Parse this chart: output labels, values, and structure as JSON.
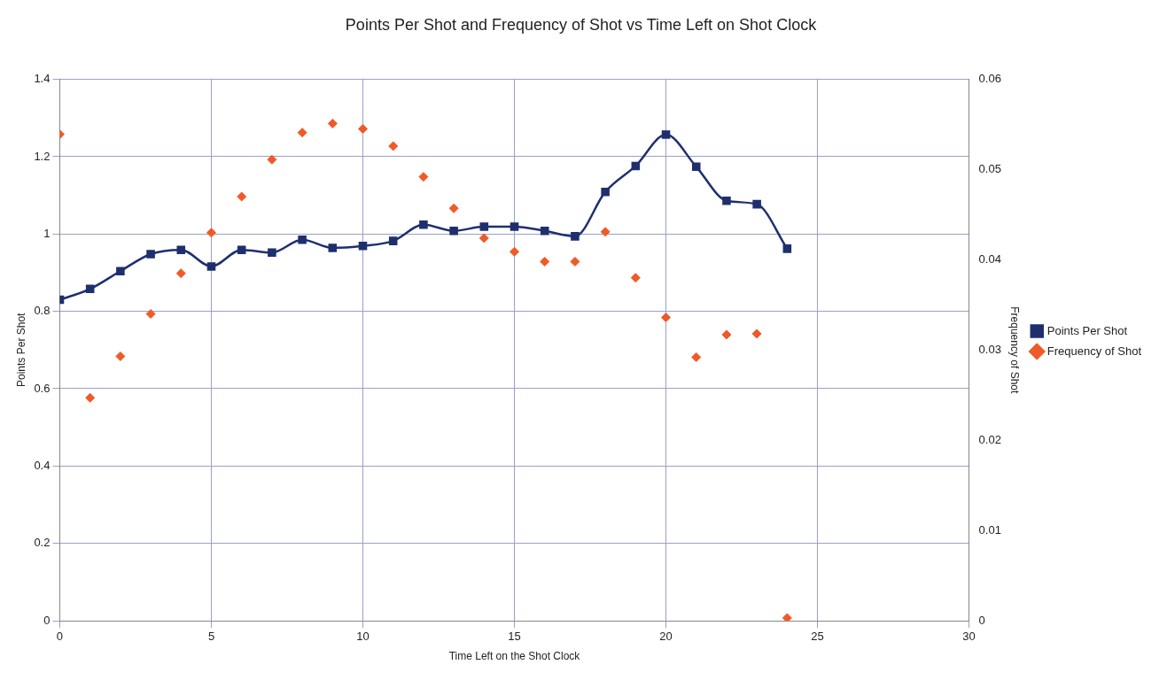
{
  "chart_data": {
    "type": "line",
    "title": "Points Per Shot and Frequency of Shot vs Time Left on Shot Clock",
    "xlabel": "Time Left on the Shot Clock",
    "ylabel": "Points Per Shot",
    "y2label": "Frequency of Shot",
    "x": [
      0,
      1,
      2,
      3,
      4,
      5,
      6,
      7,
      8,
      9,
      10,
      11,
      12,
      13,
      14,
      15,
      16,
      17,
      18,
      19,
      20,
      21,
      22,
      23,
      24
    ],
    "series": [
      {
        "name": "Points Per Shot",
        "type": "line",
        "color": "#1f2f6e",
        "marker": "square",
        "values": [
          0.83,
          0.858,
          0.904,
          0.948,
          0.959,
          0.916,
          0.959,
          0.952,
          0.985,
          0.964,
          0.969,
          0.982,
          1.024,
          1.008,
          1.019,
          1.019,
          1.008,
          0.994,
          1.109,
          1.176,
          1.257,
          1.174,
          1.086,
          1.077,
          0.962
        ]
      },
      {
        "name": "Frequency of Shot",
        "type": "scatter",
        "axis": "y2",
        "color": "#f05a28",
        "marker": "diamond",
        "values": [
          0.0539,
          0.0247,
          0.0293,
          0.034,
          0.0385,
          0.043,
          0.047,
          0.0511,
          0.0541,
          0.0551,
          0.0545,
          0.0526,
          0.0492,
          0.0457,
          0.0424,
          0.0409,
          0.0398,
          0.0398,
          0.0431,
          0.038,
          0.0336,
          0.0292,
          0.0317,
          0.0318,
          0.0003
        ]
      }
    ],
    "xlim": [
      0,
      30
    ],
    "xticks": [
      0,
      5,
      10,
      15,
      20,
      25,
      30
    ],
    "ylim": [
      0,
      1.4
    ],
    "yticks": [
      0,
      0.2,
      0.4,
      0.6,
      0.8,
      1,
      1.2,
      1.4
    ],
    "y2lim": [
      0,
      0.06
    ],
    "y2ticks": [
      0,
      0.01,
      0.02,
      0.03,
      0.04,
      0.05,
      0.06
    ],
    "grid": true,
    "legend": "right"
  }
}
